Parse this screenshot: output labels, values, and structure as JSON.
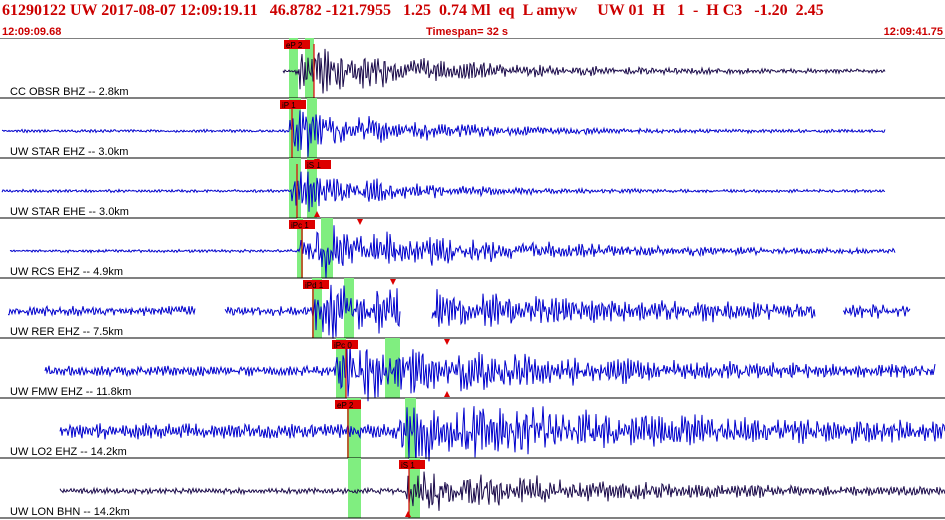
{
  "header": {
    "title": "61290122 UW 2017-08-07 12:09:19.11   46.8782 -121.7955   1.25  0.74 Ml  eq  L amyw     UW 01  H   1  -  H C3   -1.20  2.45",
    "start_time": "12:09:09.68",
    "timespan": "Timespan=  32 s",
    "end_time": "12:09:41.75"
  },
  "colors": {
    "title": "#cc0000",
    "trace_blue": "#0000cc",
    "trace_dark": "#1a0a4a",
    "pick": "#dd0000",
    "window": "#80ee80",
    "divider": "#000000"
  },
  "traces": [
    {
      "label": "CC OBSR BHZ -- 2.8km",
      "color": "dark",
      "segments": [
        [
          283,
          885
        ]
      ],
      "picks": [
        {
          "label": "eP 2",
          "t": 294,
          "box": true
        }
      ],
      "windows": [
        [
          289,
          298
        ],
        [
          305,
          314
        ]
      ],
      "marker_t": 314,
      "arrows": [],
      "onset": 296,
      "decay": 135,
      "amp": 26,
      "noise": 1.6,
      "seed": 3
    },
    {
      "label": "UW STAR EHZ -- 3.0km",
      "color": "blue",
      "segments": [
        [
          2,
          885
        ]
      ],
      "picks": [
        {
          "label": "iP 1",
          "t": 290,
          "box": true
        }
      ],
      "windows": [
        [
          289,
          301
        ],
        [
          307,
          317
        ]
      ],
      "marker_t": 292,
      "arrows": [],
      "onset": 290,
      "decay": 110,
      "amp": 26,
      "noise": 1.3,
      "seed": 7
    },
    {
      "label": "UW STAR EHE -- 3.0km",
      "color": "blue",
      "segments": [
        [
          2,
          885
        ]
      ],
      "picks": [
        {
          "label": "iS 1",
          "t": 315,
          "box": true
        }
      ],
      "windows": [
        [
          289,
          301
        ],
        [
          307,
          317
        ]
      ],
      "marker_t": 297,
      "arrows": [
        {
          "t": 317,
          "pos": "top"
        },
        {
          "t": 317,
          "pos": "bottom"
        }
      ],
      "onset": 292,
      "decay": 95,
      "amp": 24,
      "noise": 1.3,
      "seed": 11
    },
    {
      "label": "UW RCS EHZ -- 4.9km",
      "color": "blue",
      "segments": [
        [
          10,
          895
        ]
      ],
      "picks": [
        {
          "label": "iPc 1",
          "t": 299,
          "box": true
        }
      ],
      "windows": [
        [
          297,
          303
        ],
        [
          321,
          333
        ]
      ],
      "marker_t": 302,
      "arrows": [
        {
          "t": 360,
          "pos": "top"
        }
      ],
      "onset": 300,
      "decay": 190,
      "amp": 26,
      "noise": 1.3,
      "seed": 17
    },
    {
      "label": "UW RER EHZ -- 7.5km",
      "color": "blue",
      "segments": [
        [
          8,
          195
        ],
        [
          225,
          400
        ],
        [
          432,
          815
        ],
        [
          843,
          910
        ]
      ],
      "picks": [
        {
          "label": "iPd 1",
          "t": 313,
          "box": true
        }
      ],
      "windows": [
        [
          312,
          322
        ],
        [
          344,
          354
        ]
      ],
      "marker_t": 313,
      "arrows": [
        {
          "t": 393,
          "pos": "top"
        }
      ],
      "onset": 313,
      "decay": 240,
      "amp": 26,
      "noise": 4.5,
      "seed": 23
    },
    {
      "label": "UW FMW EHZ -- 11.8km",
      "color": "blue",
      "segments": [
        [
          45,
          935
        ]
      ],
      "picks": [
        {
          "label": "iPc 0",
          "t": 342,
          "box": true
        }
      ],
      "windows": [
        [
          336,
          346
        ],
        [
          385,
          400
        ]
      ],
      "marker_t": 346,
      "arrows": [
        {
          "t": 447,
          "pos": "top"
        },
        {
          "t": 447,
          "pos": "bottom"
        }
      ],
      "onset": 336,
      "decay": 230,
      "amp": 26,
      "noise": 4.5,
      "seed": 31
    },
    {
      "label": "UW LO2 EHZ -- 14.2km",
      "color": "blue",
      "segments": [
        [
          60,
          945
        ]
      ],
      "picks": [
        {
          "label": "eP 2",
          "t": 345,
          "box": true
        }
      ],
      "windows": [
        [
          347,
          361
        ],
        [
          405,
          416
        ]
      ],
      "marker_t": 348,
      "arrows": [],
      "onset": 400,
      "decay": 260,
      "amp": 26,
      "noise": 7,
      "seed": 41
    },
    {
      "label": "UW LON BHN -- 14.2km",
      "color": "dark",
      "segments": [
        [
          60,
          945
        ]
      ],
      "picks": [
        {
          "label": "iS 1",
          "t": 409,
          "box": true
        }
      ],
      "windows": [
        [
          348,
          361
        ],
        [
          409,
          420
        ]
      ],
      "marker_t": 409,
      "arrows": [
        {
          "t": 408,
          "pos": "bottom"
        }
      ],
      "onset": 406,
      "decay": 200,
      "amp": 22,
      "noise": 2.5,
      "seed": 53
    }
  ]
}
